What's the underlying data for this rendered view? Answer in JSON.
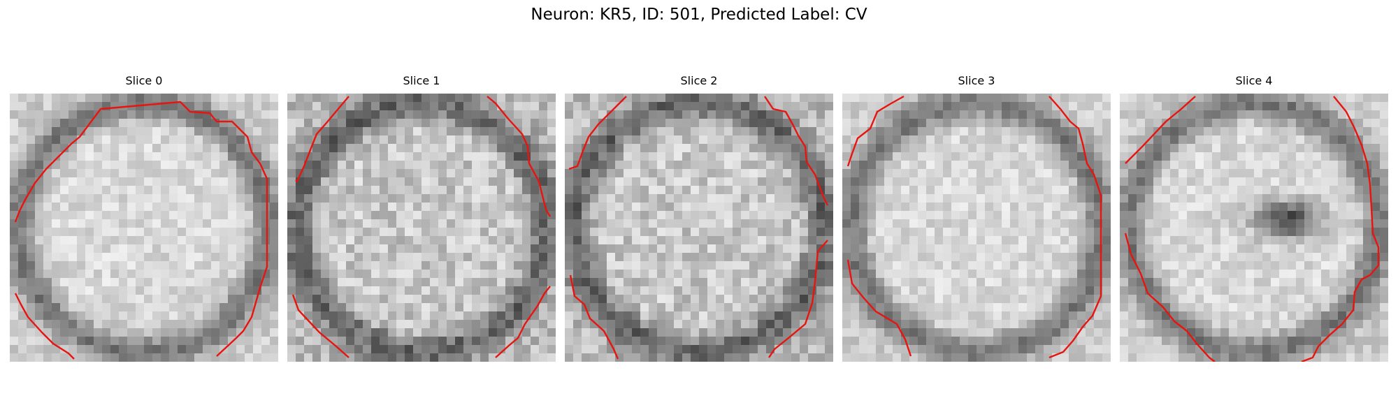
{
  "figure": {
    "title": "Neuron: KR5, ID: 501, Predicted Label: CV"
  },
  "colormap": "gray",
  "contour_color": "#e8140f",
  "panels": [
    {
      "title": "Slice 0",
      "dark_spot": false
    },
    {
      "title": "Slice 1",
      "dark_spot": false
    },
    {
      "title": "Slice 2",
      "dark_spot": false
    },
    {
      "title": "Slice 3",
      "dark_spot": false
    },
    {
      "title": "Slice 4",
      "dark_spot": true
    }
  ]
}
